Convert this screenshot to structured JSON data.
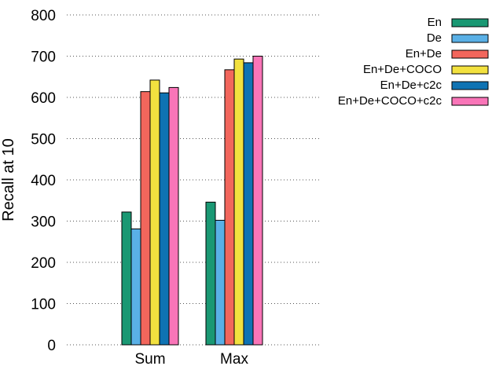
{
  "chart_data": {
    "type": "bar",
    "title": "",
    "xlabel": "",
    "ylabel": "Recall at 10",
    "ylim": [
      0,
      800
    ],
    "yticks": [
      0,
      100,
      200,
      300,
      400,
      500,
      600,
      700,
      800
    ],
    "grid": "horizontal dotted",
    "legend_position": "top-right",
    "categories": [
      "Sum",
      "Max"
    ],
    "series": [
      {
        "name": "En",
        "color": "#1a9873",
        "values": [
          322,
          346
        ]
      },
      {
        "name": "De",
        "color": "#5ab0e6",
        "values": [
          281,
          302
        ]
      },
      {
        "name": "En+De",
        "color": "#f2665c",
        "values": [
          614,
          667
        ]
      },
      {
        "name": "En+De+COCO",
        "color": "#f2e13f",
        "values": [
          642,
          693
        ]
      },
      {
        "name": "En+De+c2c",
        "color": "#0f73b3",
        "values": [
          611,
          684
        ]
      },
      {
        "name": "En+De+COCO+c2c",
        "color": "#f975b8",
        "values": [
          624,
          700
        ]
      }
    ]
  }
}
